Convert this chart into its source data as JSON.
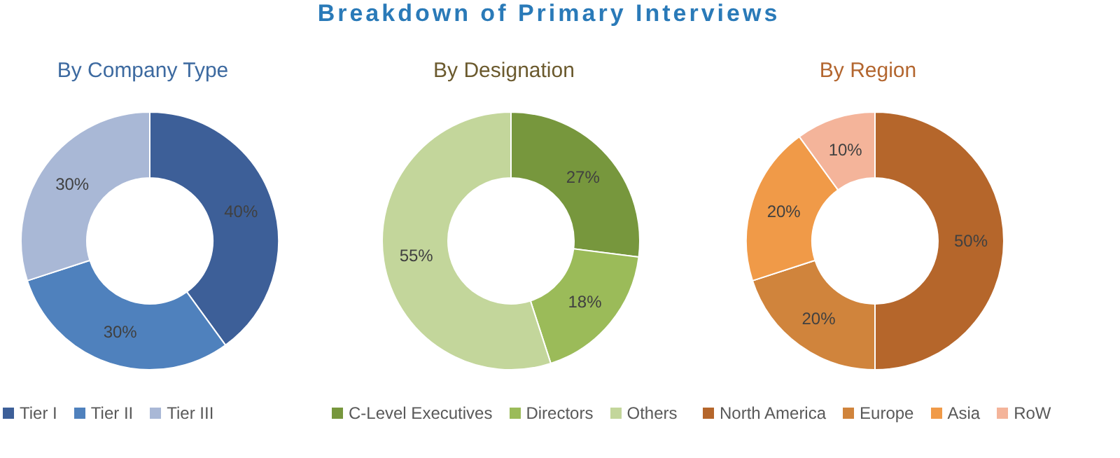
{
  "chart_data": [
    {
      "type": "other",
      "title": "Breakdown of Primary Interviews"
    },
    {
      "type": "donut",
      "title": "By Company Type",
      "categories": [
        "Tier I",
        "Tier II",
        "Tier III"
      ],
      "values": [
        40,
        30,
        30
      ],
      "value_labels": [
        "40%",
        "30%",
        "30%"
      ],
      "colors": [
        "#3d5f98",
        "#4f81bd",
        "#a9b8d6"
      ],
      "legend": "bottom"
    },
    {
      "type": "donut",
      "title": "By Designation",
      "categories": [
        "C-Level Executives",
        "Directors",
        "Others"
      ],
      "values": [
        27,
        18,
        55
      ],
      "value_labels": [
        "27%",
        "18%",
        "55%"
      ],
      "colors": [
        "#77973d",
        "#9bbb59",
        "#c3d69b"
      ],
      "legend": "bottom"
    },
    {
      "type": "donut",
      "title": "By Region",
      "categories": [
        "North America",
        "Europe",
        "Asia",
        "RoW"
      ],
      "values": [
        50,
        20,
        20,
        10
      ],
      "value_labels": [
        "50%",
        "20%",
        "20%",
        "10%"
      ],
      "colors": [
        "#b5662b",
        "#d0843c",
        "#f09a48",
        "#f4b49a"
      ],
      "legend": "bottom"
    }
  ]
}
